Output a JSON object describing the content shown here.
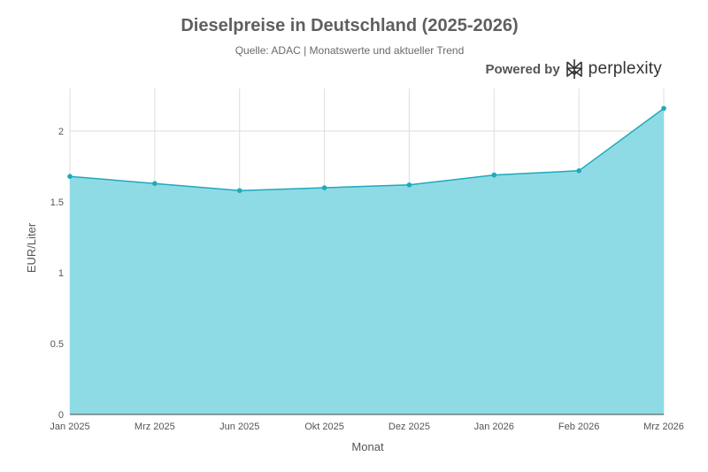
{
  "header": {
    "title": "Dieselpreise in Deutschland (2025-2026)",
    "subtitle": "Quelle: ADAC | Monatswerte und aktueller Trend"
  },
  "branding": {
    "powered_by": "Powered by",
    "name": "perplexity",
    "logo_icon": "perplexity-logo-icon"
  },
  "colors": {
    "fill": "#8fdbe5",
    "line": "#1fa9be",
    "grid": "#dedede",
    "axis": "#555555"
  },
  "chart_data": {
    "type": "area",
    "title": "Dieselpreise in Deutschland (2025-2026)",
    "subtitle": "Quelle: ADAC | Monatswerte und aktueller Trend",
    "xlabel": "Monat",
    "ylabel": "EUR/Liter",
    "categories": [
      "Jan 2025",
      "Mrz 2025",
      "Jun 2025",
      "Okt 2025",
      "Dez 2025",
      "Jan 2026",
      "Feb 2026",
      "Mrz 2026"
    ],
    "values": [
      1.68,
      1.63,
      1.58,
      1.6,
      1.62,
      1.69,
      1.72,
      2.16
    ],
    "ylim": [
      0,
      2.3
    ],
    "yticks": [
      0,
      0.5,
      1,
      1.5,
      2
    ],
    "ytick_labels": [
      "0",
      "0.5",
      "1",
      "1.5",
      "2"
    ],
    "grid": true,
    "legend": "none"
  }
}
